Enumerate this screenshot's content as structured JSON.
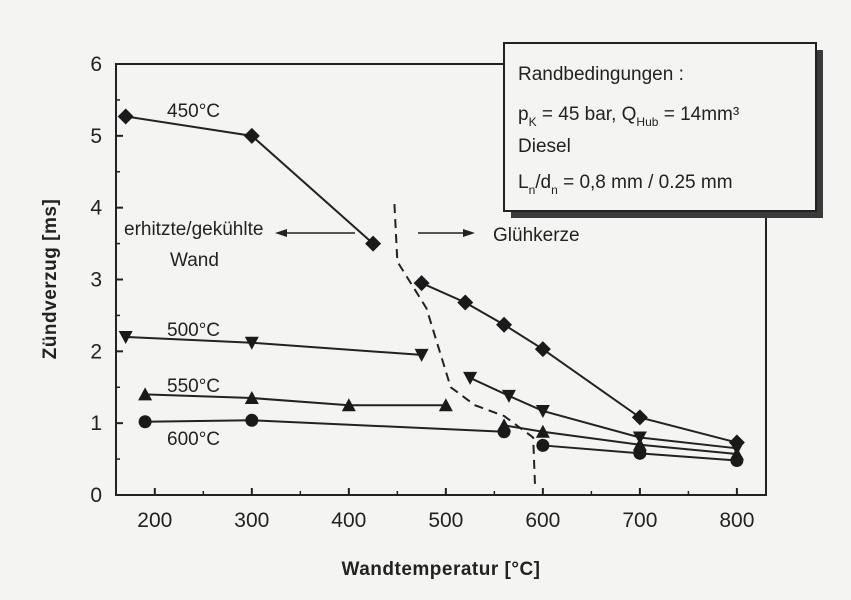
{
  "chart_data": {
    "type": "line",
    "xlabel": "Wandtemperatur  [°C]",
    "ylabel": "Zündverzug  [ms]",
    "xlim": [
      160,
      830
    ],
    "ylim": [
      0,
      6
    ],
    "xticks": [
      200,
      300,
      400,
      500,
      600,
      700,
      800
    ],
    "yticks": [
      0,
      1,
      2,
      3,
      4,
      5,
      6
    ],
    "grid": false,
    "series": [
      {
        "name": "450°C",
        "marker": "diamond",
        "segments": [
          {
            "x": [
              170,
              300,
              425
            ],
            "y": [
              5.27,
              5.0,
              3.5
            ]
          },
          {
            "x": [
              475,
              520,
              560,
              600,
              700,
              800
            ],
            "y": [
              2.95,
              2.68,
              2.37,
              2.03,
              1.08,
              0.73
            ]
          }
        ]
      },
      {
        "name": "500°C",
        "marker": "triangle-down",
        "segments": [
          {
            "x": [
              170,
              300,
              475
            ],
            "y": [
              2.2,
              2.12,
              1.95
            ]
          },
          {
            "x": [
              525,
              565,
              600,
              700,
              800
            ],
            "y": [
              1.63,
              1.38,
              1.17,
              0.8,
              0.65
            ]
          }
        ]
      },
      {
        "name": "550°C",
        "marker": "triangle-up",
        "segments": [
          {
            "x": [
              190,
              300,
              400,
              500
            ],
            "y": [
              1.4,
              1.35,
              1.25,
              1.25
            ]
          },
          {
            "x": [
              560,
              600,
              700,
              800
            ],
            "y": [
              0.97,
              0.88,
              0.7,
              0.57
            ]
          }
        ]
      },
      {
        "name": "600°C",
        "marker": "circle",
        "segments": [
          {
            "x": [
              190,
              300,
              560
            ],
            "y": [
              1.02,
              1.04,
              0.88
            ]
          },
          {
            "x": [
              600,
              700,
              800
            ],
            "y": [
              0.69,
              0.58,
              0.48
            ]
          }
        ]
      }
    ],
    "boundary_line": {
      "style": "dashed",
      "x": [
        447,
        450,
        480,
        505,
        530,
        560,
        590,
        592
      ],
      "y": [
        4.05,
        3.25,
        2.6,
        1.5,
        1.25,
        1.1,
        0.8,
        0.1
      ]
    },
    "annotations": {
      "left_line1": "erhitzte/gekühlte",
      "left_line2": "Wand",
      "right": "Glühkerze",
      "conditions_title": "Randbedingungen :",
      "conditions_p": "p",
      "conditions_p_sub": "K",
      "conditions_p_rest": " = 45 bar, Q",
      "conditions_q_sub": "Hub",
      "conditions_q_rest": " = 14mm³",
      "conditions_fuel": "Diesel",
      "conditions_l": "L",
      "conditions_l_sub": "n",
      "conditions_d": "/d",
      "conditions_d_sub": "n",
      "conditions_l_rest": " = 0,8 mm / 0.25 mm"
    }
  }
}
